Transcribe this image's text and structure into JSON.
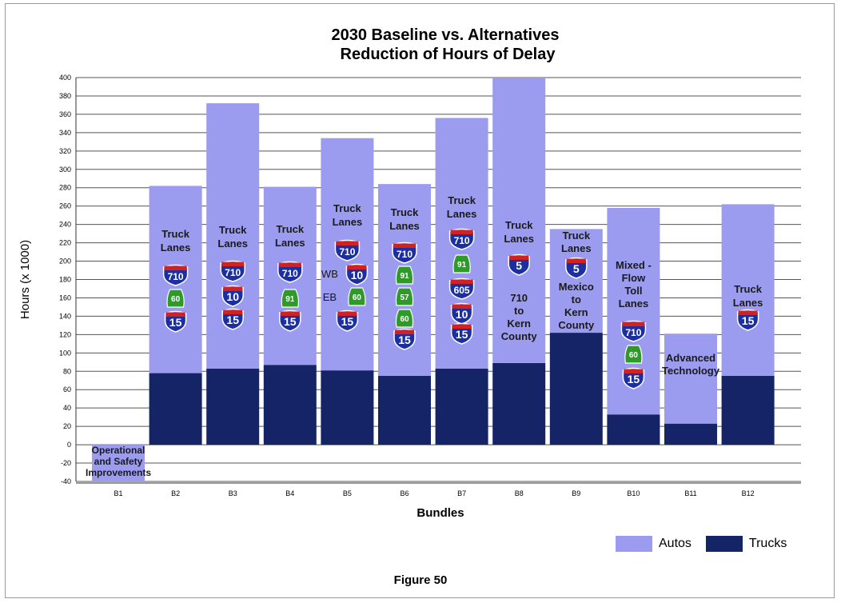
{
  "chart_data": {
    "type": "bar",
    "stacked": true,
    "title": "2030 Baseline vs. Alternatives",
    "subtitle": "Reduction of Hours of Delay",
    "xlabel": "Bundles",
    "ylabel": "Hours (x 1000)",
    "ylim": [
      -40,
      400
    ],
    "yticks": [
      -40,
      -20,
      0,
      20,
      40,
      60,
      80,
      100,
      120,
      140,
      160,
      180,
      200,
      220,
      240,
      260,
      280,
      300,
      320,
      340,
      360,
      380,
      400
    ],
    "grid": true,
    "legend_position": "bottom-right",
    "categories": [
      "B1",
      "B2",
      "B3",
      "B4",
      "B5",
      "B6",
      "B7",
      "B8",
      "B9",
      "B10",
      "B11",
      "B12"
    ],
    "series": [
      {
        "name": "Trucks",
        "color": "#152466",
        "values": [
          0,
          78,
          83,
          87,
          81,
          75,
          83,
          89,
          122,
          33,
          23,
          75
        ]
      },
      {
        "name": "Autos",
        "color": "#9b9bf0",
        "values": [
          -40,
          204,
          289,
          194,
          253,
          209,
          273,
          311,
          113,
          225,
          98,
          187
        ]
      }
    ],
    "bar_annotations": [
      {
        "bar": "B1",
        "lines": [
          "Operational",
          "and Safety",
          "Improvements"
        ],
        "shields": []
      },
      {
        "bar": "B2",
        "lines": [
          "Truck",
          "Lanes"
        ],
        "shields": [
          {
            "type": "interstate",
            "label": "710"
          },
          {
            "type": "state",
            "label": "60"
          },
          {
            "type": "interstate",
            "label": "15"
          }
        ]
      },
      {
        "bar": "B3",
        "lines": [
          "Truck",
          "Lanes"
        ],
        "shields": [
          {
            "type": "interstate",
            "label": "710"
          },
          {
            "type": "interstate",
            "label": "10"
          },
          {
            "type": "interstate",
            "label": "15"
          }
        ]
      },
      {
        "bar": "B4",
        "lines": [
          "Truck",
          "Lanes"
        ],
        "shields": [
          {
            "type": "interstate",
            "label": "710"
          },
          {
            "type": "state",
            "label": "91"
          },
          {
            "type": "interstate",
            "label": "15"
          }
        ]
      },
      {
        "bar": "B5",
        "lines": [
          "Truck",
          "Lanes"
        ],
        "shields": [
          {
            "type": "interstate",
            "label": "710"
          },
          {
            "type": "interstate",
            "label": "10",
            "prefix": "WB"
          },
          {
            "type": "state",
            "label": "60",
            "prefix": "EB"
          },
          {
            "type": "interstate",
            "label": "15"
          }
        ]
      },
      {
        "bar": "B6",
        "lines": [
          "Truck",
          "Lanes"
        ],
        "shields": [
          {
            "type": "interstate",
            "label": "710"
          },
          {
            "type": "state",
            "label": "91"
          },
          {
            "type": "state",
            "label": "57"
          },
          {
            "type": "state",
            "label": "60"
          },
          {
            "type": "interstate",
            "label": "15"
          }
        ]
      },
      {
        "bar": "B7",
        "lines": [
          "Truck",
          "Lanes"
        ],
        "shields": [
          {
            "type": "interstate",
            "label": "710"
          },
          {
            "type": "state",
            "label": "91"
          },
          {
            "type": "interstate",
            "label": "605"
          },
          {
            "type": "interstate",
            "label": "10"
          },
          {
            "type": "interstate",
            "label": "15"
          }
        ]
      },
      {
        "bar": "B8",
        "lines": [
          "Truck",
          "Lanes"
        ],
        "shields": [
          {
            "type": "interstate",
            "label": "5"
          }
        ],
        "lines2": [
          "710",
          "to",
          "Kern",
          "County"
        ]
      },
      {
        "bar": "B9",
        "lines": [
          "Truck",
          "Lanes"
        ],
        "shields": [
          {
            "type": "interstate",
            "label": "5"
          }
        ],
        "lines2": [
          "Mexico",
          "to",
          "Kern",
          "County"
        ]
      },
      {
        "bar": "B10",
        "lines": [
          "Mixed -",
          "Flow",
          "Toll",
          "Lanes"
        ],
        "shields": [
          {
            "type": "interstate",
            "label": "710"
          },
          {
            "type": "state",
            "label": "60"
          },
          {
            "type": "interstate",
            "label": "15"
          }
        ]
      },
      {
        "bar": "B11",
        "lines": [
          "Advanced",
          "Technology"
        ],
        "shields": []
      },
      {
        "bar": "B12",
        "lines": [
          "Truck",
          "Lanes"
        ],
        "shields": [
          {
            "type": "interstate",
            "label": "15"
          }
        ]
      }
    ]
  },
  "figure_caption": "Figure 50",
  "legend": {
    "items": [
      {
        "label": "Autos",
        "color": "#9b9bf0"
      },
      {
        "label": "Trucks",
        "color": "#152466"
      }
    ]
  }
}
